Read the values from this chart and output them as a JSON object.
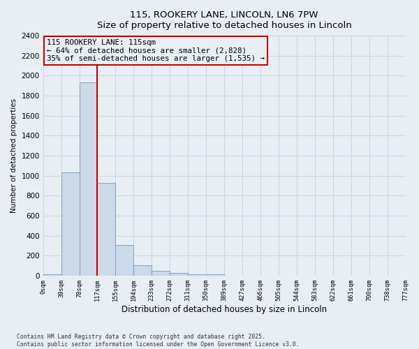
{
  "title_line1": "115, ROOKERY LANE, LINCOLN, LN6 7PW",
  "title_line2": "Size of property relative to detached houses in Lincoln",
  "xlabel": "Distribution of detached houses by size in Lincoln",
  "ylabel": "Number of detached properties",
  "bar_color": "#ccd9e8",
  "bar_edge_color": "#7799bb",
  "grid_color": "#c5d5e5",
  "annotation_line1": "115 ROOKERY LANE: 115sqm",
  "annotation_line2": "← 64% of detached houses are smaller (2,828)",
  "annotation_line3": "35% of semi-detached houses are larger (1,535) →",
  "property_line_color": "#cc0000",
  "bins": [
    "0sqm",
    "39sqm",
    "78sqm",
    "117sqm",
    "155sqm",
    "194sqm",
    "233sqm",
    "272sqm",
    "311sqm",
    "350sqm",
    "389sqm",
    "427sqm",
    "466sqm",
    "505sqm",
    "544sqm",
    "583sqm",
    "622sqm",
    "661sqm",
    "700sqm",
    "738sqm",
    "777sqm"
  ],
  "values": [
    15,
    1030,
    1930,
    930,
    310,
    105,
    48,
    28,
    18,
    12,
    0,
    0,
    0,
    0,
    0,
    0,
    0,
    0,
    0,
    0
  ],
  "ylim": [
    0,
    2400
  ],
  "yticks": [
    0,
    200,
    400,
    600,
    800,
    1000,
    1200,
    1400,
    1600,
    1800,
    2000,
    2200,
    2400
  ],
  "footer_line1": "Contains HM Land Registry data © Crown copyright and database right 2025.",
  "footer_line2": "Contains public sector information licensed under the Open Government Licence v3.0.",
  "bg_color": "#e8eef4"
}
